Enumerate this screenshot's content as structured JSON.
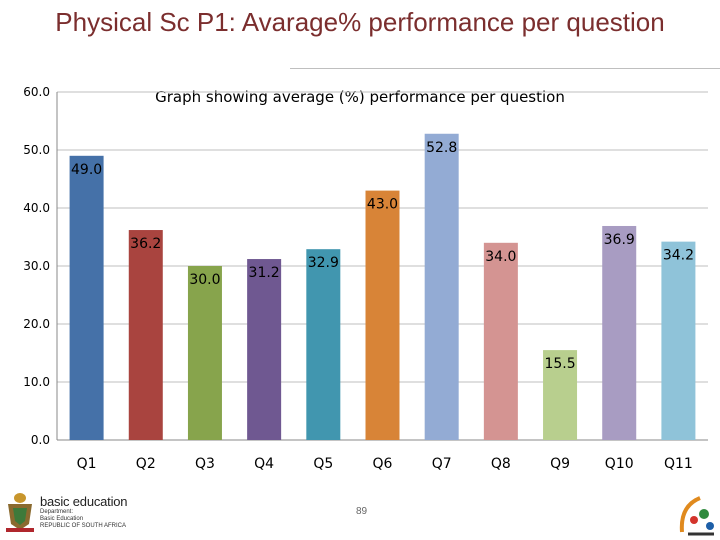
{
  "slide": {
    "title": "Physical Sc P1: Avarage% performance per question",
    "page_number": "89"
  },
  "footer": {
    "org_name": "basic education",
    "org_lines": [
      "Department:",
      "Basic Education",
      "REPUBLIC OF SOUTH AFRICA"
    ]
  },
  "colors": {
    "title": "#7b2e2e",
    "bars": [
      "#4571a8",
      "#a9443f",
      "#87a44c",
      "#6f5891",
      "#4196af",
      "#d88437",
      "#93abd4",
      "#d49492",
      "#b8cf8e",
      "#a89cc2",
      "#8fc3d9"
    ]
  },
  "chart_data": {
    "type": "bar",
    "title": "Graph showing average (%) performance per question",
    "categories": [
      "Q1",
      "Q2",
      "Q3",
      "Q4",
      "Q5",
      "Q6",
      "Q7",
      "Q8",
      "Q9",
      "Q10",
      "Q11"
    ],
    "values": [
      49.0,
      36.2,
      30.0,
      31.2,
      32.9,
      43.0,
      52.8,
      34.0,
      15.5,
      36.9,
      34.2
    ],
    "data_labels": [
      "49.0",
      "36.2",
      "30.0",
      "31.2",
      "32.9",
      "43.0",
      "52.8",
      "34.0",
      "15.5",
      "36.9",
      "34.2"
    ],
    "yticks": [
      "0.0",
      "10.0",
      "20.0",
      "30.0",
      "40.0",
      "50.0",
      "60.0"
    ],
    "ylim": [
      0,
      60
    ],
    "xlabel": "",
    "ylabel": "",
    "grid": true,
    "legend": "none"
  }
}
